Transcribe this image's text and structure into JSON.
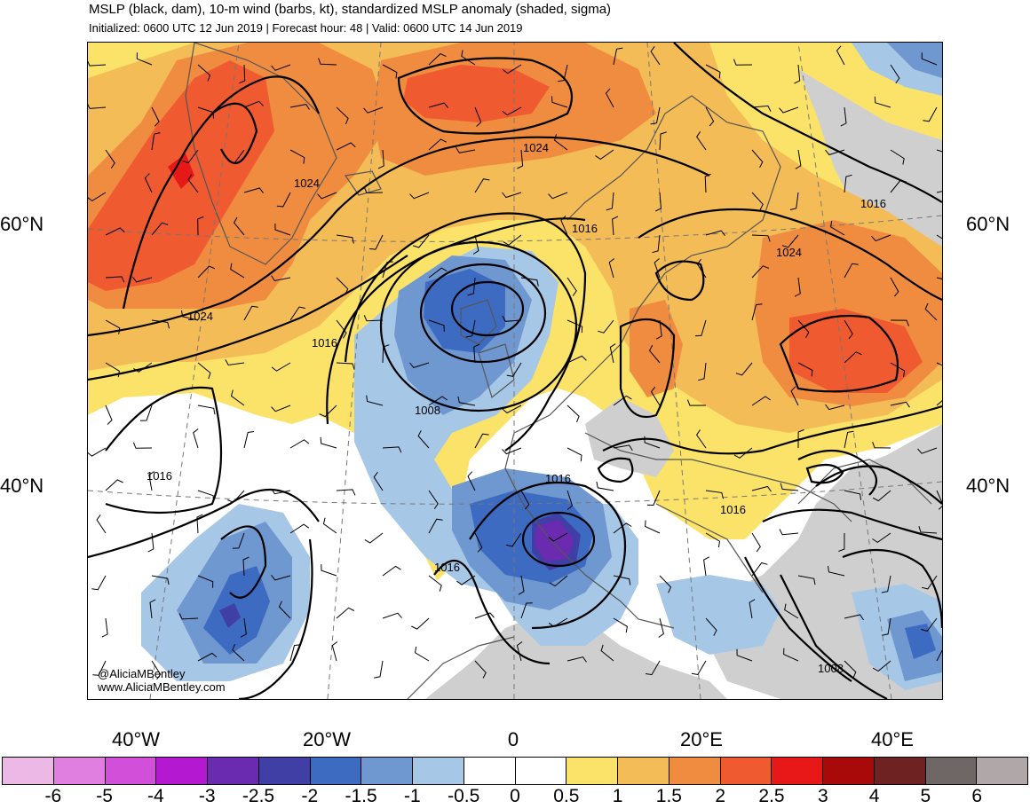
{
  "header": {
    "title": "MSLP (black, dam), 10-m wind (barbs, kt), standardized MSLP anomaly (shaded, sigma)",
    "subtitle": "Initialized: 0600 UTC 12 Jun 2019 | Forecast hour: 48 | Valid: 0600 UTC 14 Jun 2019"
  },
  "axes": {
    "lat_labels": [
      "60°N",
      "40°N"
    ],
    "lon_labels": [
      "40°W",
      "20°W",
      "0",
      "20°E",
      "40°E"
    ]
  },
  "isobar_labels": [
    "1024",
    "1024",
    "1024",
    "1016",
    "1024",
    "1016",
    "1016",
    "1008",
    "1016",
    "1016",
    "1016",
    "1016",
    "1008"
  ],
  "credit": {
    "handle": "@AliciaMBentley",
    "website": "www.AliciaMBentley.com"
  },
  "colorbar": {
    "labels": [
      "-6",
      "-5",
      "-4",
      "-3",
      "-2.5",
      "-2",
      "-1.5",
      "-1",
      "-0.5",
      "0",
      "0.5",
      "1",
      "1.5",
      "2",
      "2.5",
      "3",
      "4",
      "5",
      "6"
    ],
    "colors": [
      "#ecb9e6",
      "#e07fe0",
      "#d24fd9",
      "#b418d0",
      "#6a2bb0",
      "#3f3fa6",
      "#3e6bc2",
      "#6f98d1",
      "#a7c7e7",
      "#ffffff",
      "#ffffff",
      "#fbe36a",
      "#f4bc57",
      "#f08c40",
      "#ef5a30",
      "#e61818",
      "#a80a0a",
      "#6e2222",
      "#6f6666",
      "#b0a8a8"
    ]
  },
  "map_colors": {
    "neg_050": "#a7c7e7",
    "neg_100": "#6f98d1",
    "neg_150": "#3e6bc2",
    "neg_200": "#3f3fa6",
    "neg_250": "#6a2bb0",
    "pos_050": "#fbe36a",
    "pos_100": "#f4bc57",
    "pos_150": "#f08c40",
    "pos_200": "#ef5a30",
    "pos_250": "#e61818",
    "land_gray": "#cfcfcf"
  }
}
